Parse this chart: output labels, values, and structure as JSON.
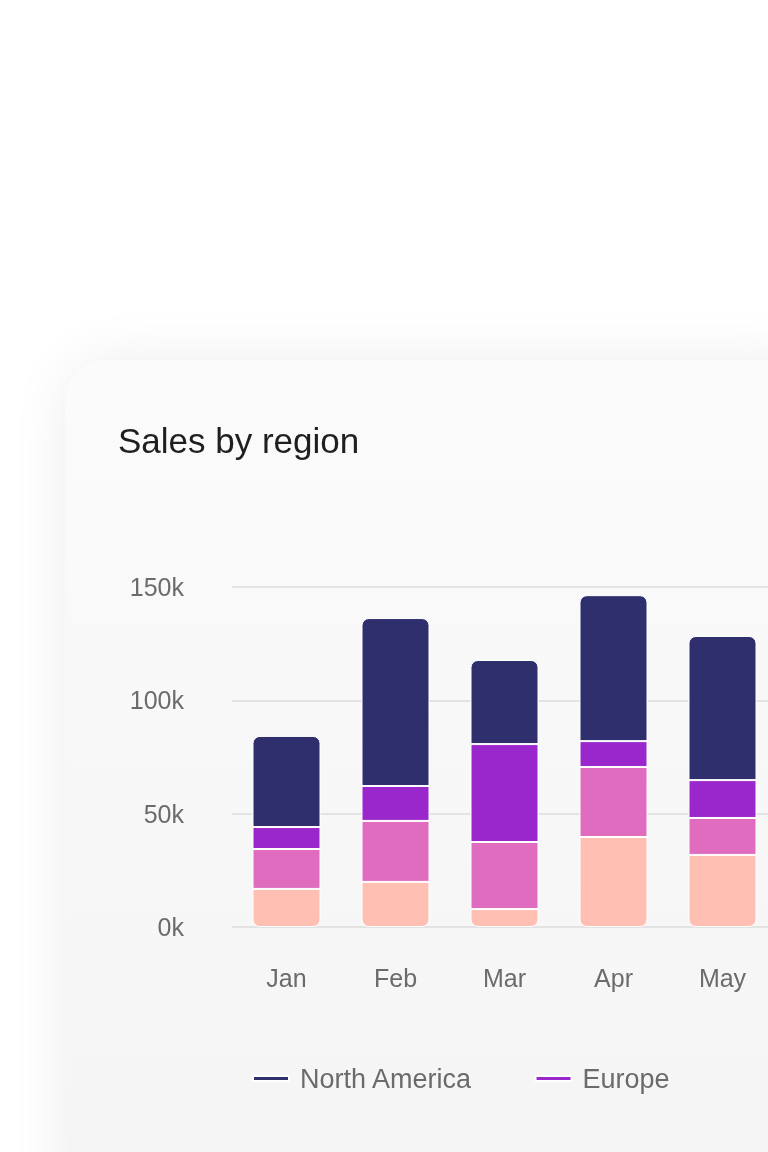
{
  "chart_data": {
    "type": "bar",
    "title": "Sales by region",
    "stacked": true,
    "categories": [
      "Jan",
      "Feb",
      "Mar",
      "Apr",
      "May"
    ],
    "series": [
      {
        "color": "#ffbfb3",
        "values": [
          16.8,
          19.9,
          7.9,
          39.7,
          31.8
        ]
      },
      {
        "color": "#e06cc0",
        "values": [
          17.6,
          26.9,
          29.6,
          30.9,
          16.3
        ]
      },
      {
        "name": "Europe",
        "color": "#9a27cc",
        "values": [
          9.7,
          15.4,
          43.2,
          11.4,
          16.7
        ]
      },
      {
        "name": "North America",
        "color": "#2f2f6e",
        "values": [
          40.2,
          74.1,
          37.1,
          64.4,
          63.6
        ]
      }
    ],
    "ylim": [
      0,
      150
    ],
    "yticks": [
      {
        "value": 0,
        "label": "0k"
      },
      {
        "value": 50,
        "label": "50k"
      },
      {
        "value": 100,
        "label": "100k"
      },
      {
        "value": 150,
        "label": "150k"
      }
    ],
    "grid": "y",
    "legend": "bottom"
  }
}
